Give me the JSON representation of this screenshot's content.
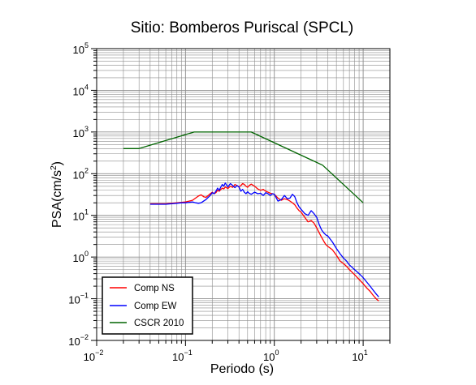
{
  "chart_data": {
    "type": "line",
    "title": "Sitio: Bomberos Puriscal (SPCL)",
    "xlabel": "Periodo (s)",
    "ylabel": {
      "base": "PSA(cm/s",
      "sup": "2",
      "close": ")"
    },
    "x_scale": "log",
    "y_scale": "log",
    "xlim": [
      0.01,
      20
    ],
    "ylim": [
      0.01,
      100000
    ],
    "grid": true,
    "legend_position": "bottom-left",
    "x_ticks": [
      {
        "value": 0.01,
        "base": "10",
        "exp": "−2"
      },
      {
        "value": 0.1,
        "base": "10",
        "exp": "−1"
      },
      {
        "value": 1,
        "base": "10",
        "exp": "0"
      },
      {
        "value": 10,
        "base": "10",
        "exp": "1"
      }
    ],
    "y_ticks": [
      {
        "value": 0.01,
        "base": "10",
        "exp": "−2"
      },
      {
        "value": 0.1,
        "base": "10",
        "exp": "−1"
      },
      {
        "value": 1,
        "base": "10",
        "exp": "0"
      },
      {
        "value": 10,
        "base": "10",
        "exp": "1"
      },
      {
        "value": 100,
        "base": "10",
        "exp": "2"
      },
      {
        "value": 1000,
        "base": "10",
        "exp": "3"
      },
      {
        "value": 10000,
        "base": "10",
        "exp": "4"
      },
      {
        "value": 100000,
        "base": "10",
        "exp": "5"
      }
    ],
    "series": [
      {
        "name": "Comp NS",
        "color": "#ff0000",
        "x": [
          0.04,
          0.05,
          0.06,
          0.07,
          0.08,
          0.09,
          0.1,
          0.11,
          0.12,
          0.13,
          0.14,
          0.15,
          0.16,
          0.17,
          0.18,
          0.19,
          0.2,
          0.21,
          0.22,
          0.23,
          0.24,
          0.25,
          0.26,
          0.27,
          0.28,
          0.3,
          0.32,
          0.34,
          0.36,
          0.38,
          0.4,
          0.42,
          0.44,
          0.46,
          0.48,
          0.5,
          0.52,
          0.55,
          0.6,
          0.65,
          0.7,
          0.75,
          0.8,
          0.85,
          0.9,
          0.95,
          1.0,
          1.1,
          1.2,
          1.3,
          1.4,
          1.5,
          1.6,
          1.7,
          1.8,
          1.9,
          2.0,
          2.2,
          2.4,
          2.6,
          2.8,
          3.0,
          3.2,
          3.4,
          3.6,
          3.8,
          4.0,
          4.5,
          5.0,
          5.5,
          6.0,
          6.5,
          7.0,
          8.0,
          9.0,
          10.0,
          11.0,
          12.0,
          13.0,
          14.0,
          15.0
        ],
        "y": [
          19,
          19,
          19,
          19.5,
          20,
          20.5,
          21,
          22,
          23,
          26,
          29,
          31,
          28,
          27,
          30,
          33,
          36,
          33,
          35,
          40,
          38,
          42,
          45,
          43,
          48,
          44,
          50,
          47,
          55,
          52,
          48,
          52,
          58,
          55,
          50,
          47,
          52,
          56,
          50,
          43,
          40,
          42,
          38,
          36,
          34,
          33,
          32,
          26,
          23,
          25,
          24,
          22,
          20,
          18,
          15,
          13,
          12,
          9,
          7,
          7.5,
          6.5,
          5,
          3.8,
          3,
          2.4,
          2,
          1.8,
          1.5,
          1.1,
          0.8,
          0.7,
          0.6,
          0.5,
          0.38,
          0.29,
          0.23,
          0.18,
          0.15,
          0.12,
          0.1,
          0.088
        ]
      },
      {
        "name": "Comp EW",
        "color": "#0000ff",
        "x": [
          0.04,
          0.05,
          0.06,
          0.07,
          0.08,
          0.09,
          0.1,
          0.11,
          0.12,
          0.13,
          0.14,
          0.15,
          0.16,
          0.17,
          0.18,
          0.19,
          0.2,
          0.21,
          0.22,
          0.23,
          0.24,
          0.25,
          0.26,
          0.27,
          0.28,
          0.3,
          0.32,
          0.34,
          0.36,
          0.38,
          0.4,
          0.42,
          0.44,
          0.46,
          0.48,
          0.5,
          0.52,
          0.55,
          0.6,
          0.65,
          0.7,
          0.75,
          0.8,
          0.85,
          0.9,
          0.95,
          1.0,
          1.1,
          1.2,
          1.3,
          1.4,
          1.5,
          1.6,
          1.7,
          1.8,
          1.9,
          2.0,
          2.2,
          2.4,
          2.6,
          2.8,
          3.0,
          3.2,
          3.4,
          3.6,
          3.8,
          4.0,
          4.5,
          5.0,
          5.5,
          6.0,
          6.5,
          7.0,
          8.0,
          9.0,
          10.0,
          11.0,
          12.0,
          13.0,
          14.0,
          15.0
        ],
        "y": [
          18.5,
          18.5,
          18.5,
          19,
          19.5,
          20,
          20,
          20.5,
          21,
          20,
          19.5,
          20,
          22,
          24,
          27,
          30,
          35,
          33,
          38,
          45,
          40,
          48,
          55,
          50,
          60,
          48,
          58,
          52,
          46,
          52,
          48,
          38,
          42,
          36,
          33,
          37,
          34,
          32,
          36,
          33,
          34,
          30,
          35,
          33,
          30,
          33,
          32,
          22,
          24,
          30,
          25,
          26,
          32,
          28,
          20,
          16,
          14,
          11,
          10,
          13,
          11,
          9,
          6,
          4.5,
          3.8,
          3.4,
          3.2,
          2.3,
          1.6,
          1.2,
          0.95,
          0.8,
          0.65,
          0.5,
          0.4,
          0.32,
          0.25,
          0.2,
          0.16,
          0.13,
          0.11
        ]
      },
      {
        "name": "CSCR 2010",
        "color": "#006400",
        "x": [
          0.02,
          0.03,
          0.125,
          0.55,
          3.5,
          10.0
        ],
        "y": [
          400,
          400,
          1000,
          1000,
          160,
          20
        ]
      }
    ]
  }
}
